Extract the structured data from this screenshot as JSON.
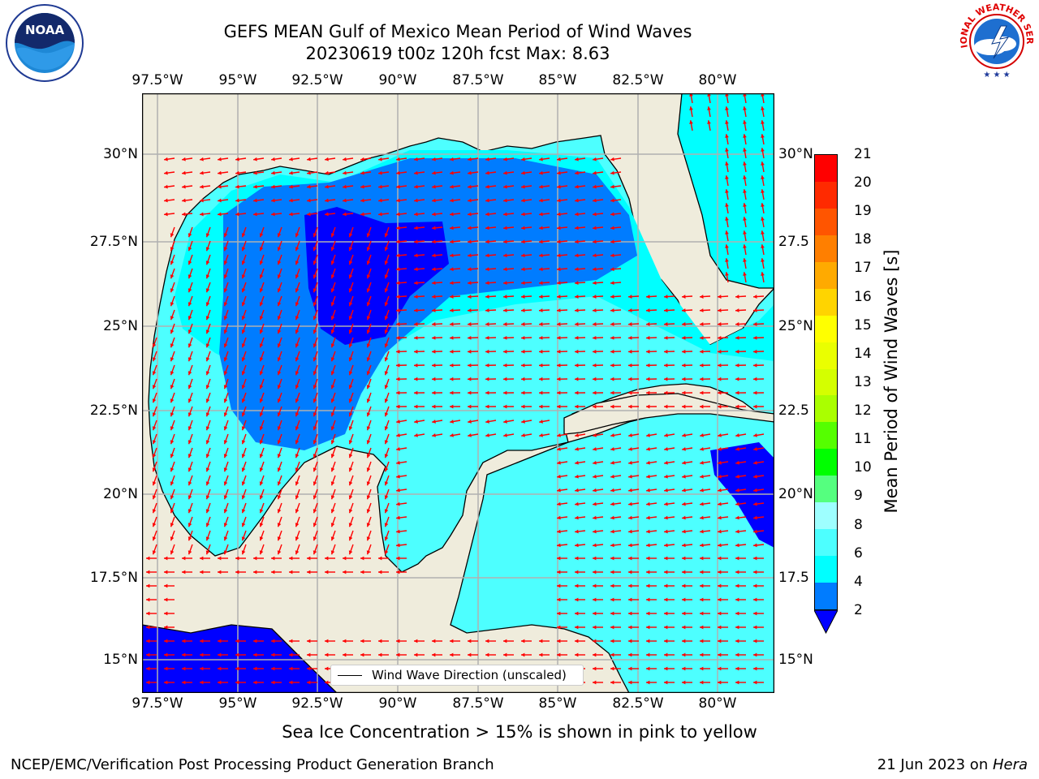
{
  "title": {
    "line1": "GEFS MEAN Gulf of Mexico Mean Period of Wind Waves",
    "line2": "20230619 t00z 120h fcst   Max: 8.63"
  },
  "logos": {
    "left": {
      "label": "NOAA",
      "ring_text": "NATIONAL OCEANIC AND ATMOSPHERIC ADMINISTRATION · U.S. DEPARTMENT OF COMMERCE"
    },
    "right": {
      "ring_text": "NATIONAL WEATHER SERVICE"
    }
  },
  "map": {
    "lon_ticks": [
      "97.5°W",
      "95°W",
      "92.5°W",
      "90°W",
      "87.5°W",
      "85°W",
      "82.5°W",
      "80°W"
    ],
    "lat_ticks_left": [
      "30°N",
      "27.5°N",
      "25°N",
      "22.5°N",
      "20°N",
      "17.5°N",
      "15°N"
    ],
    "lat_ticks_right": [
      "30°N",
      "27.5",
      "25°N",
      "22.5",
      "20°N",
      "17.5",
      "15°N"
    ],
    "legend_label": "Wind Wave Direction (unscaled)",
    "colors": {
      "land": "#efecdc",
      "cyan": "#00ffff",
      "light_cyan": "#4dffff",
      "pale": "#9effff",
      "mid_blue": "#007cff",
      "deep_blue": "#0000ff",
      "arrow": "#ff0000",
      "grid": "#b0b0b0"
    }
  },
  "colorbar": {
    "label": "Mean Period of Wind Waves [s]",
    "ticks": [
      "21",
      "20",
      "19",
      "18",
      "17",
      "16",
      "15",
      "14",
      "13",
      "12",
      "11",
      "10",
      "9",
      "8",
      "6",
      "4",
      "2"
    ],
    "colors": [
      "#ff0000",
      "#ff2a00",
      "#ff5500",
      "#ff7f00",
      "#ffaa00",
      "#ffd400",
      "#ffff00",
      "#eaff00",
      "#d4ff00",
      "#aaff00",
      "#55ff00",
      "#00ff00",
      "#55ff7f",
      "#9effff",
      "#4dffff",
      "#00ffff",
      "#007cff"
    ],
    "extend_color": "#0000ff"
  },
  "caption": "Sea Ice Concentration > 15% is shown in pink to yellow",
  "footer": {
    "left": "NCEP/EMC/Verification Post Processing Product Generation Branch",
    "right_date": "21 Jun 2023 on ",
    "right_host": "Hera"
  }
}
